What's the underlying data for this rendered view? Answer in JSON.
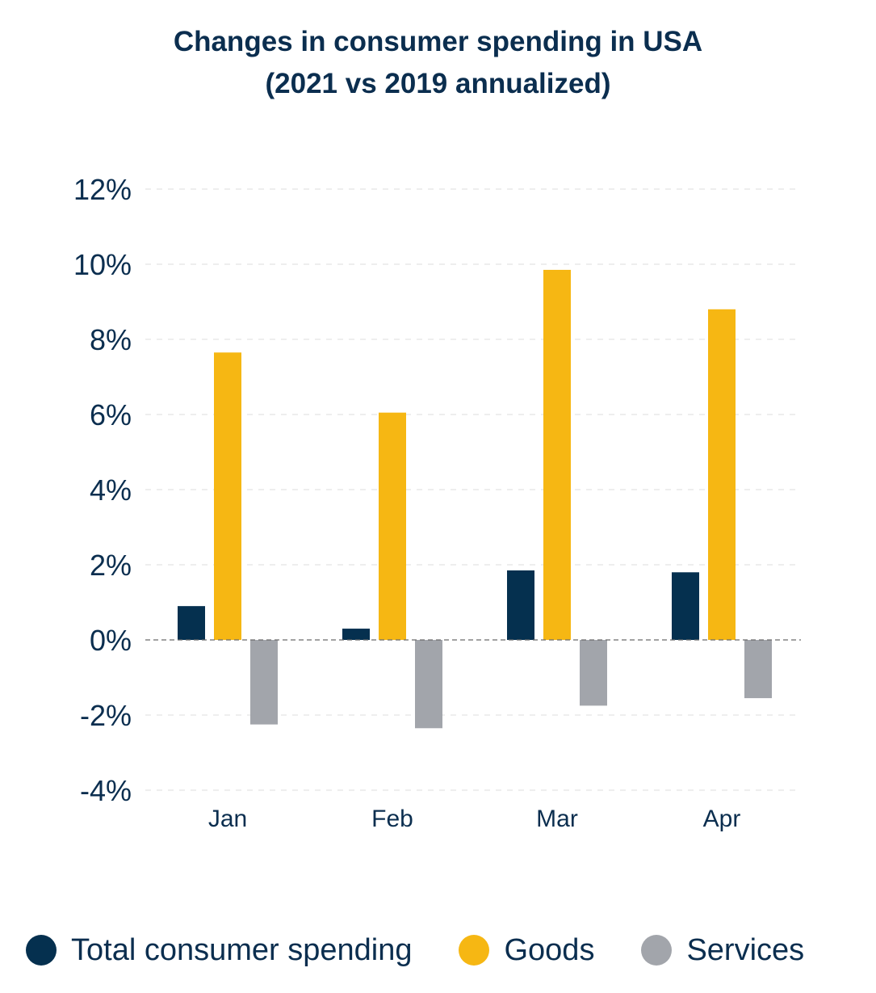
{
  "chart_data": {
    "type": "bar",
    "title": "Changes in consumer spending in USA",
    "subtitle": "(2021 vs 2019 annualized)",
    "categories": [
      "Jan",
      "Feb",
      "Mar",
      "Apr"
    ],
    "series": [
      {
        "name": "Total consumer spending",
        "color": "#05304f",
        "values": [
          0.9,
          0.3,
          1.85,
          1.8
        ]
      },
      {
        "name": "Goods",
        "color": "#f6b713",
        "values": [
          7.65,
          6.05,
          9.85,
          8.8
        ]
      },
      {
        "name": "Services",
        "color": "#a2a5ab",
        "values": [
          -2.25,
          -2.35,
          -1.75,
          -1.55
        ]
      }
    ],
    "yticks": [
      -4,
      -2,
      0,
      2,
      4,
      6,
      8,
      10,
      12
    ],
    "ytick_labels": [
      "-4%",
      "-2%",
      "0%",
      "2%",
      "4%",
      "6%",
      "8%",
      "10%",
      "12%"
    ],
    "ylim": [
      -4,
      12
    ],
    "xlabel": "",
    "ylabel": "",
    "grid": true,
    "legend_position": "bottom"
  }
}
